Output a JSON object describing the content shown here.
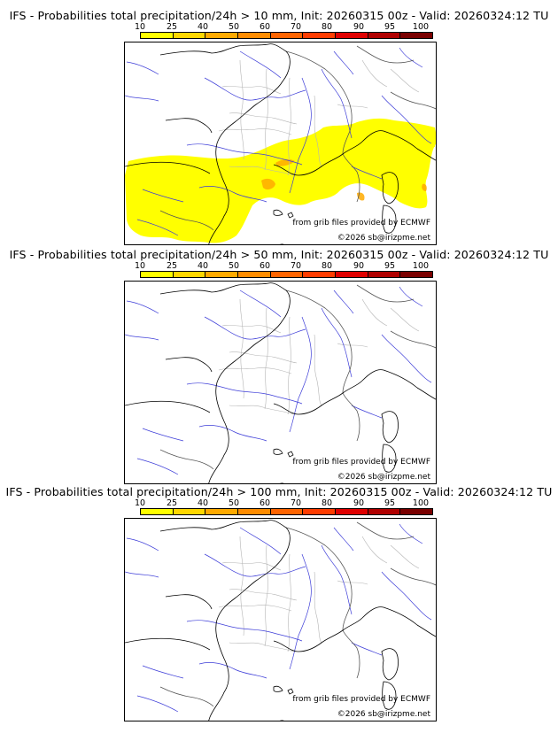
{
  "legend": {
    "ticks": [
      "10",
      "25",
      "40",
      "50",
      "60",
      "70",
      "80",
      "90",
      "95",
      "100"
    ],
    "colors": [
      "#ffff00",
      "#ffd700",
      "#ffaa00",
      "#ff8c00",
      "#ff6400",
      "#ff3c00",
      "#e00000",
      "#b00000",
      "#7a0000"
    ]
  },
  "credits": {
    "source": "from grib files provided by ECMWF",
    "copyright": "©2026 sb@irizpme.net"
  },
  "panels": [
    {
      "title": "IFS - Probabilities total precipitation/24h > 10 mm, Init: 20260315 00z - Valid: 20260324:12 TU",
      "threshold_mm": 10,
      "has_shading": true
    },
    {
      "title": "IFS - Probabilities total precipitation/24h > 50 mm, Init: 20260315 00z - Valid: 20260324:12 TU",
      "threshold_mm": 50,
      "has_shading": false
    },
    {
      "title": "IFS - Probabilities total precipitation/24h > 100 mm, Init: 20260315 00z - Valid: 20260324:12 TU",
      "threshold_mm": 100,
      "has_shading": false
    }
  ]
}
